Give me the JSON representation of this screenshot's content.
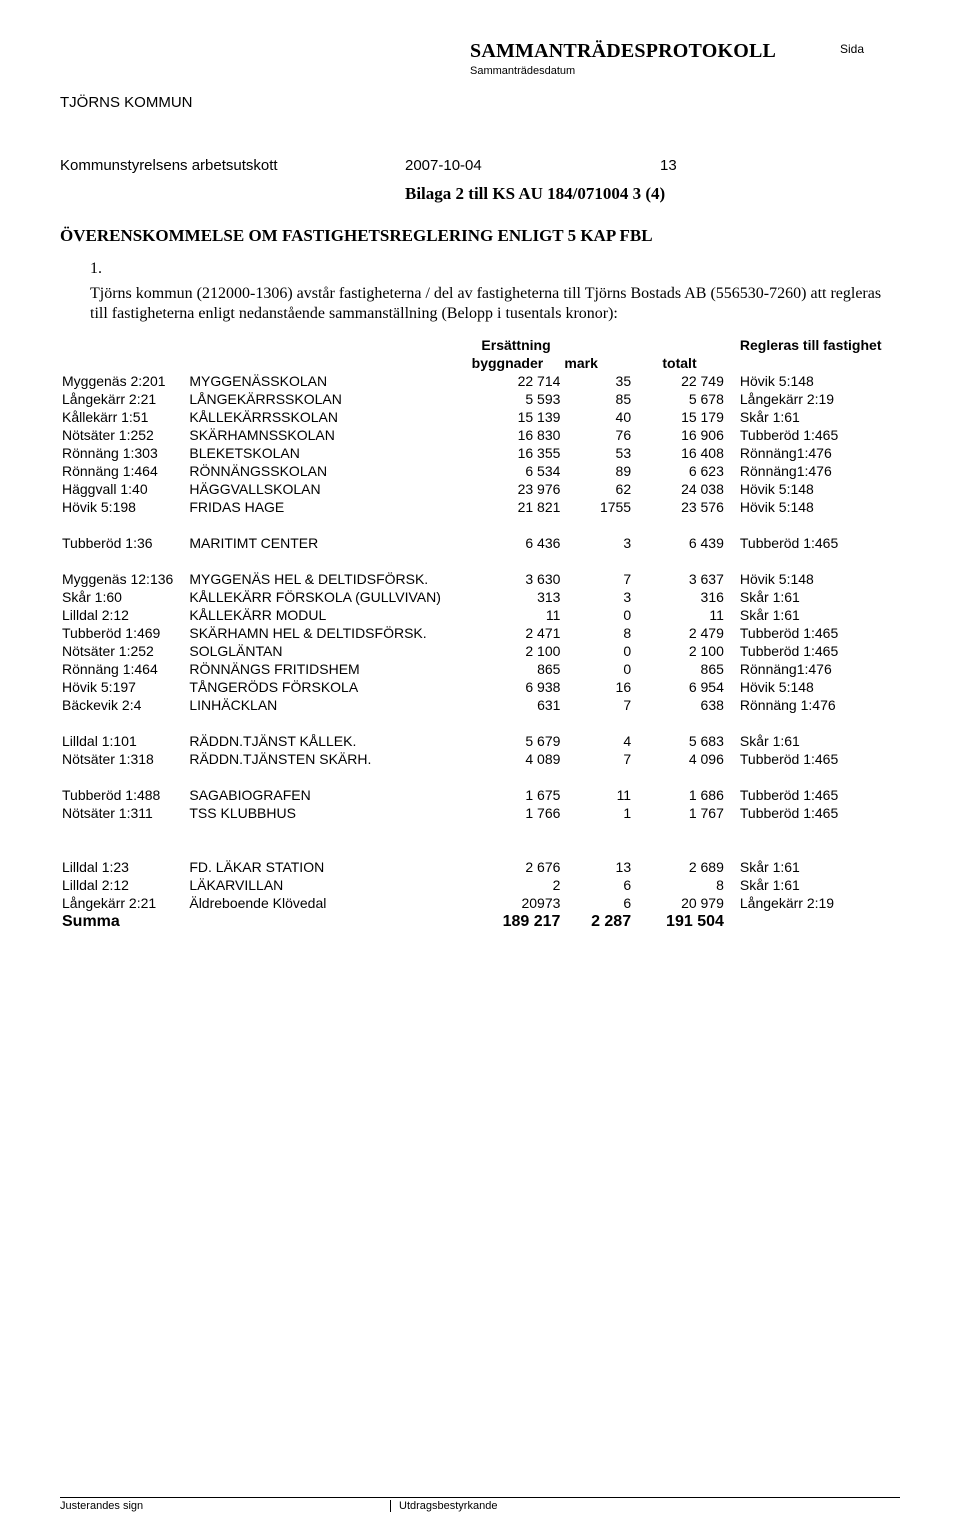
{
  "header": {
    "org": "TJÖRNS KOMMUN",
    "protokoll": "SAMMANTRÄDESPROTOKOLL",
    "sammdatum": "Sammanträdesdatum",
    "sida": "Sida"
  },
  "meeting": {
    "group": "Kommunstyrelsens arbetsutskott",
    "date": "2007-10-04",
    "page": "13"
  },
  "bilaga": "Bilaga 2 till KS AU 184/071004 3 (4)",
  "overens_title": "ÖVERENSKOMMELSE OM FASTIGHETSREGLERING ENLIGT 5 KAP FBL",
  "list_num": "1.",
  "body": "Tjörns kommun (212000-1306) avstår fastigheterna / del av fastigheterna till Tjörns Bostads AB (556530-7260) att regleras till fastigheterna enligt nedanstående sammanställning (Belopp i tusentals kronor):",
  "col_headers": {
    "ersattning": "Ersättning",
    "regleras": "Regleras till fastighet",
    "byggnader": "byggnader",
    "mark": "mark",
    "totalt": "totalt"
  },
  "blocks": [
    [
      {
        "prop": "Myggenäs 2:201",
        "name": "MYGGENÄSSKOLAN",
        "bygg": "22 714",
        "mark": "35",
        "tot": "22 749",
        "reg": "Hövik 5:148"
      },
      {
        "prop": "Långekärr 2:21",
        "name": "LÅNGEKÄRRSSKOLAN",
        "bygg": "5 593",
        "mark": "85",
        "tot": "5 678",
        "reg": "Långekärr 2:19"
      },
      {
        "prop": "Kållekärr 1:51",
        "name": "KÅLLEKÄRRSSKOLAN",
        "bygg": "15 139",
        "mark": "40",
        "tot": "15 179",
        "reg": "Skår 1:61"
      },
      {
        "prop": "Nötsäter 1:252",
        "name": "SKÄRHAMNSSKOLAN",
        "bygg": "16 830",
        "mark": "76",
        "tot": "16 906",
        "reg": "Tubberöd 1:465"
      },
      {
        "prop": "Rönnäng 1:303",
        "name": "BLEKETSKOLAN",
        "bygg": "16 355",
        "mark": "53",
        "tot": "16 408",
        "reg": "Rönnäng1:476"
      },
      {
        "prop": "Rönnäng 1:464",
        "name": "RÖNNÄNGSSKOLAN",
        "bygg": "6 534",
        "mark": "89",
        "tot": "6 623",
        "reg": "Rönnäng1:476"
      },
      {
        "prop": "Häggvall 1:40",
        "name": "HÄGGVALLSKOLAN",
        "bygg": "23 976",
        "mark": "62",
        "tot": "24 038",
        "reg": "Hövik 5:148"
      },
      {
        "prop": "Hövik 5:198",
        "name": "FRIDAS HAGE",
        "bygg": "21 821",
        "mark": "1755",
        "tot": "23 576",
        "reg": "Hövik 5:148"
      }
    ],
    [
      {
        "prop": "Tubberöd 1:36",
        "name": "MARITIMT CENTER",
        "bygg": "6 436",
        "mark": "3",
        "tot": "6 439",
        "reg": "Tubberöd 1:465"
      }
    ],
    [
      {
        "prop": "Myggenäs 12:136",
        "name": "MYGGENÄS HEL & DELTIDSFÖRSK.",
        "bygg": "3 630",
        "mark": "7",
        "tot": "3 637",
        "reg": "Hövik 5:148"
      },
      {
        "prop": "Skår 1:60",
        "name": "KÅLLEKÄRR FÖRSKOLA (GULLVIVAN)",
        "bygg": "313",
        "mark": "3",
        "tot": "316",
        "reg": "Skår 1:61"
      },
      {
        "prop": "Lilldal 2:12",
        "name": "KÅLLEKÄRR MODUL",
        "bygg": "11",
        "mark": "0",
        "tot": "11",
        "reg": "Skår 1:61"
      },
      {
        "prop": "Tubberöd 1:469",
        "name": "SKÄRHAMN HEL & DELTIDSFÖRSK.",
        "bygg": "2 471",
        "mark": "8",
        "tot": "2 479",
        "reg": "Tubberöd 1:465"
      },
      {
        "prop": "Nötsäter 1:252",
        "name": "SOLGLÄNTAN",
        "bygg": "2 100",
        "mark": "0",
        "tot": "2 100",
        "reg": "Tubberöd 1:465"
      },
      {
        "prop": "Rönnäng 1:464",
        "name": "RÖNNÄNGS FRITIDSHEM",
        "bygg": "865",
        "mark": "0",
        "tot": "865",
        "reg": "Rönnäng1:476"
      },
      {
        "prop": "Hövik 5:197",
        "name": "TÅNGERÖDS FÖRSKOLA",
        "bygg": "6 938",
        "mark": "16",
        "tot": "6 954",
        "reg": "Hövik 5:148"
      },
      {
        "prop": "Bäckevik 2:4",
        "name": "LINHÄCKLAN",
        "bygg": "631",
        "mark": "7",
        "tot": "638",
        "reg": "Rönnäng 1:476"
      }
    ],
    [
      {
        "prop": "Lilldal 1:101",
        "name": "RÄDDN.TJÄNST KÅLLEK.",
        "bygg": "5 679",
        "mark": "4",
        "tot": "5 683",
        "reg": "Skår 1:61"
      },
      {
        "prop": "Nötsäter 1:318",
        "name": "RÄDDN.TJÄNSTEN SKÄRH.",
        "bygg": "4 089",
        "mark": "7",
        "tot": "4 096",
        "reg": "Tubberöd 1:465"
      }
    ],
    [
      {
        "prop": "Tubberöd 1:488",
        "name": "SAGABIOGRAFEN",
        "bygg": "1 675",
        "mark": "11",
        "tot": "1 686",
        "reg": "Tubberöd 1:465"
      },
      {
        "prop": "Nötsäter 1:311",
        "name": "TSS KLUBBHUS",
        "bygg": "1 766",
        "mark": "1",
        "tot": "1 767",
        "reg": "Tubberöd 1:465"
      }
    ],
    [
      {
        "prop": "Lilldal 1:23",
        "name": "FD. LÄKAR STATION",
        "bygg": "2 676",
        "mark": "13",
        "tot": "2 689",
        "reg": "Skår 1:61"
      },
      {
        "prop": "Lilldal 2:12",
        "name": "LÄKARVILLAN",
        "bygg": "2",
        "mark": "6",
        "tot": "8",
        "reg": "Skår 1:61"
      },
      {
        "prop": "Långekärr 2:21",
        "name": "Äldreboende Klövedal",
        "bygg": "20973",
        "mark": "6",
        "tot": "20 979",
        "reg": "Långekärr 2:19"
      }
    ]
  ],
  "summa": {
    "label": "Summa",
    "bygg": "189 217",
    "mark": "2 287",
    "tot": "191 504"
  },
  "footer": {
    "left": "Justerandes sign",
    "right": "Utdragsbestyrkande"
  }
}
